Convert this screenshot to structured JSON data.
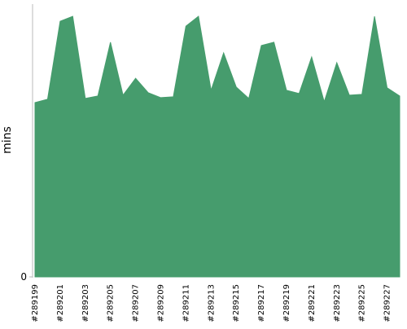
{
  "chart_data": {
    "type": "area",
    "y_label": "mins",
    "color": "#469c6d",
    "categories": [
      "#289199",
      null,
      "#289201",
      null,
      "#289203",
      null,
      "#289205",
      null,
      "#289207",
      null,
      "#289209",
      null,
      "#289211",
      null,
      "#289213",
      null,
      "#289215",
      null,
      "#289217",
      null,
      "#289219",
      null,
      "#289221",
      null,
      "#289223",
      null,
      "#289225",
      null,
      "#289227",
      null
    ],
    "values": [
      63.9,
      65.1,
      93.7,
      95.5,
      65.4,
      66.3,
      86.0,
      66.6,
      72.8,
      67.5,
      65.7,
      66.0,
      91.9,
      95.5,
      68.4,
      82.1,
      69.6,
      65.4,
      84.8,
      86.0,
      68.4,
      67.2,
      80.6,
      64.2,
      78.5,
      66.6,
      66.9,
      95.5,
      69.3,
      66.3
    ],
    "ylim": [
      0,
      100
    ],
    "yticks": [
      0
    ]
  }
}
